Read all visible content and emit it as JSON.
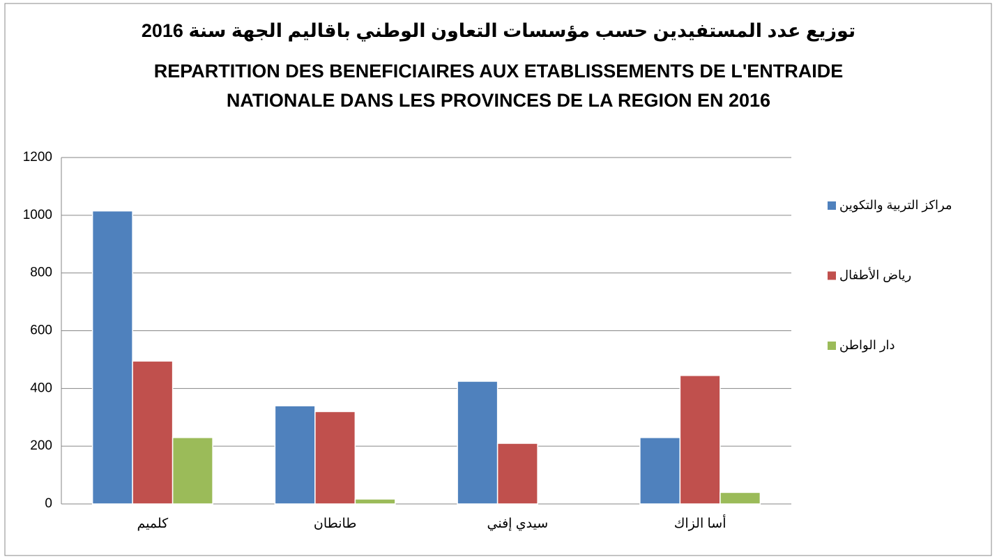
{
  "chart_data": {
    "type": "bar",
    "title": "توزيع عدد المستفيدين حسب مؤسسات التعاون الوطني باقاليم الجهة  سنة 2016",
    "subtitle": [
      "REPARTITION DES BENEFICIAIRES AUX ETABLISSEMENTS DE L'ENTRAIDE",
      "NATIONALE DANS LES PROVINCES  DE LA REGION   EN 2016"
    ],
    "categories": [
      "كلميم",
      "طانطان",
      "سيدي إفني",
      "أسا الزاك"
    ],
    "series": [
      {
        "name": "مراكز التربية والتكوين",
        "color": "#4f81bd",
        "values": [
          1015,
          340,
          425,
          230
        ]
      },
      {
        "name": "رياض الأطفال",
        "color": "#c0504d",
        "values": [
          495,
          320,
          210,
          445
        ]
      },
      {
        "name": "دار الواطن",
        "color": "#9bbb59",
        "values": [
          230,
          17,
          0,
          40
        ]
      }
    ],
    "ylim": [
      0,
      1200
    ],
    "yticks": [
      0,
      200,
      400,
      600,
      800,
      1000,
      1200
    ],
    "grid": true,
    "legend": "right"
  }
}
